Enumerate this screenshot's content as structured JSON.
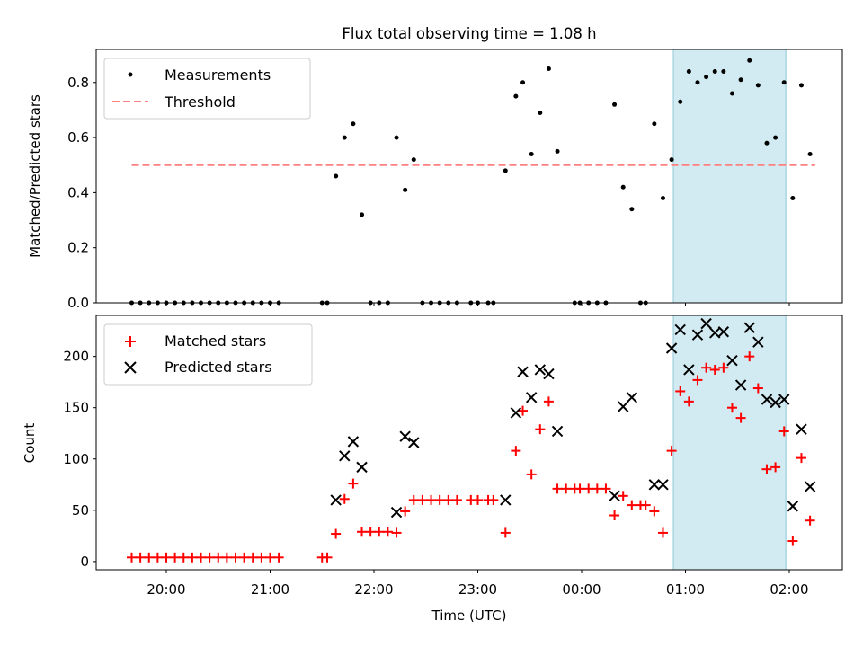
{
  "chart_data": {
    "title": "Flux total observing time = 1.08 h",
    "xlabel": "Time (UTC)",
    "x_ticks": [
      "20:00",
      "21:00",
      "22:00",
      "23:00",
      "00:00",
      "01:00",
      "02:00"
    ],
    "observing_window": {
      "start": "00:53",
      "end": "01:58",
      "color": "#add8e6"
    },
    "panels": [
      {
        "type": "scatter",
        "ylabel": "Matched/Predicted stars",
        "ylim": [
          0,
          0.92
        ],
        "y_ticks": [
          "0.0",
          "0.2",
          "0.4",
          "0.6",
          "0.8"
        ],
        "legend_position": "top-left",
        "threshold": {
          "name": "Threshold",
          "value": 0.5,
          "start": "19:40",
          "end": "02:15",
          "color": "#ff8080"
        },
        "series": [
          {
            "name": "Measurements",
            "color": "#000000",
            "points": [
              [
                "19:40",
                0
              ],
              [
                "19:45",
                0
              ],
              [
                "19:50",
                0
              ],
              [
                "19:55",
                0
              ],
              [
                "20:00",
                0
              ],
              [
                "20:05",
                0
              ],
              [
                "20:10",
                0
              ],
              [
                "20:15",
                0
              ],
              [
                "20:20",
                0
              ],
              [
                "20:25",
                0
              ],
              [
                "20:30",
                0
              ],
              [
                "20:35",
                0
              ],
              [
                "20:40",
                0
              ],
              [
                "20:45",
                0
              ],
              [
                "20:50",
                0
              ],
              [
                "20:55",
                0
              ],
              [
                "21:00",
                0
              ],
              [
                "21:05",
                0
              ],
              [
                "21:30",
                0
              ],
              [
                "21:33",
                0
              ],
              [
                "21:38",
                0.46
              ],
              [
                "21:43",
                0.6
              ],
              [
                "21:48",
                0.65
              ],
              [
                "21:53",
                0.32
              ],
              [
                "21:58",
                0
              ],
              [
                "22:03",
                0
              ],
              [
                "22:08",
                0
              ],
              [
                "22:13",
                0.6
              ],
              [
                "22:18",
                0.41
              ],
              [
                "22:23",
                0.52
              ],
              [
                "22:28",
                0
              ],
              [
                "22:33",
                0
              ],
              [
                "22:38",
                0
              ],
              [
                "22:43",
                0
              ],
              [
                "22:48",
                0
              ],
              [
                "22:56",
                0
              ],
              [
                "23:00",
                0
              ],
              [
                "23:06",
                0
              ],
              [
                "23:09",
                0
              ],
              [
                "23:16",
                0.48
              ],
              [
                "23:22",
                0.75
              ],
              [
                "23:26",
                0.8
              ],
              [
                "23:31",
                0.54
              ],
              [
                "23:36",
                0.69
              ],
              [
                "23:41",
                0.85
              ],
              [
                "23:46",
                0.55
              ],
              [
                "23:56",
                0
              ],
              [
                "23:59",
                0
              ],
              [
                "00:04",
                0
              ],
              [
                "00:09",
                0
              ],
              [
                "00:14",
                0
              ],
              [
                "00:19",
                0.72
              ],
              [
                "00:24",
                0.42
              ],
              [
                "00:29",
                0.34
              ],
              [
                "00:34",
                0
              ],
              [
                "00:37",
                0
              ],
              [
                "00:42",
                0.65
              ],
              [
                "00:47",
                0.38
              ],
              [
                "00:52",
                0.52
              ],
              [
                "00:57",
                0.73
              ],
              [
                "01:02",
                0.84
              ],
              [
                "01:07",
                0.8
              ],
              [
                "01:12",
                0.82
              ],
              [
                "01:17",
                0.84
              ],
              [
                "01:22",
                0.84
              ],
              [
                "01:27",
                0.76
              ],
              [
                "01:32",
                0.81
              ],
              [
                "01:37",
                0.88
              ],
              [
                "01:42",
                0.79
              ],
              [
                "01:47",
                0.58
              ],
              [
                "01:52",
                0.6
              ],
              [
                "01:57",
                0.8
              ],
              [
                "02:02",
                0.38
              ],
              [
                "02:07",
                0.79
              ],
              [
                "02:12",
                0.54
              ]
            ]
          }
        ]
      },
      {
        "type": "scatter",
        "ylabel": "Count",
        "ylim": [
          -8,
          240
        ],
        "y_ticks": [
          "0",
          "50",
          "100",
          "150",
          "200"
        ],
        "legend_position": "top-left",
        "series": [
          {
            "name": "Matched stars",
            "marker": "plus",
            "color": "#ff0000",
            "points": [
              [
                "19:40",
                4
              ],
              [
                "19:45",
                4
              ],
              [
                "19:50",
                4
              ],
              [
                "19:55",
                4
              ],
              [
                "20:00",
                4
              ],
              [
                "20:05",
                4
              ],
              [
                "20:10",
                4
              ],
              [
                "20:15",
                4
              ],
              [
                "20:20",
                4
              ],
              [
                "20:25",
                4
              ],
              [
                "20:30",
                4
              ],
              [
                "20:35",
                4
              ],
              [
                "20:40",
                4
              ],
              [
                "20:45",
                4
              ],
              [
                "20:50",
                4
              ],
              [
                "20:55",
                4
              ],
              [
                "21:00",
                4
              ],
              [
                "21:05",
                4
              ],
              [
                "21:30",
                4
              ],
              [
                "21:33",
                4
              ],
              [
                "21:38",
                27
              ],
              [
                "21:43",
                61
              ],
              [
                "21:48",
                76
              ],
              [
                "21:53",
                29
              ],
              [
                "21:58",
                29
              ],
              [
                "22:03",
                29
              ],
              [
                "22:08",
                29
              ],
              [
                "22:13",
                28
              ],
              [
                "22:18",
                49
              ],
              [
                "22:23",
                60
              ],
              [
                "22:28",
                60
              ],
              [
                "22:33",
                60
              ],
              [
                "22:38",
                60
              ],
              [
                "22:43",
                60
              ],
              [
                "22:48",
                60
              ],
              [
                "22:56",
                60
              ],
              [
                "23:00",
                60
              ],
              [
                "23:06",
                60
              ],
              [
                "23:09",
                60
              ],
              [
                "23:16",
                28
              ],
              [
                "23:22",
                108
              ],
              [
                "23:26",
                147
              ],
              [
                "23:31",
                85
              ],
              [
                "23:36",
                129
              ],
              [
                "23:41",
                156
              ],
              [
                "23:46",
                71
              ],
              [
                "23:51",
                71
              ],
              [
                "23:56",
                71
              ],
              [
                "23:59",
                71
              ],
              [
                "00:04",
                71
              ],
              [
                "00:09",
                71
              ],
              [
                "00:14",
                71
              ],
              [
                "00:19",
                45
              ],
              [
                "00:24",
                64
              ],
              [
                "00:29",
                55
              ],
              [
                "00:34",
                55
              ],
              [
                "00:37",
                55
              ],
              [
                "00:42",
                49
              ],
              [
                "00:47",
                28
              ],
              [
                "00:52",
                108
              ],
              [
                "00:57",
                166
              ],
              [
                "01:02",
                156
              ],
              [
                "01:07",
                177
              ],
              [
                "01:12",
                189
              ],
              [
                "01:17",
                187
              ],
              [
                "01:22",
                189
              ],
              [
                "01:27",
                150
              ],
              [
                "01:32",
                140
              ],
              [
                "01:37",
                200
              ],
              [
                "01:42",
                169
              ],
              [
                "01:47",
                90
              ],
              [
                "01:52",
                92
              ],
              [
                "01:57",
                127
              ],
              [
                "02:02",
                20
              ],
              [
                "02:07",
                101
              ],
              [
                "02:12",
                40
              ]
            ]
          },
          {
            "name": "Predicted stars",
            "marker": "x",
            "color": "#000000",
            "points": [
              [
                "21:38",
                60
              ],
              [
                "21:43",
                103
              ],
              [
                "21:48",
                117
              ],
              [
                "21:53",
                92
              ],
              [
                "22:13",
                48
              ],
              [
                "22:18",
                122
              ],
              [
                "22:23",
                116
              ],
              [
                "23:16",
                60
              ],
              [
                "23:22",
                145
              ],
              [
                "23:26",
                185
              ],
              [
                "23:31",
                160
              ],
              [
                "23:36",
                187
              ],
              [
                "23:41",
                183
              ],
              [
                "23:46",
                127
              ],
              [
                "00:19",
                64
              ],
              [
                "00:24",
                151
              ],
              [
                "00:29",
                160
              ],
              [
                "00:42",
                75
              ],
              [
                "00:47",
                75
              ],
              [
                "00:52",
                208
              ],
              [
                "00:57",
                226
              ],
              [
                "01:02",
                187
              ],
              [
                "01:07",
                221
              ],
              [
                "01:12",
                232
              ],
              [
                "01:17",
                223
              ],
              [
                "01:22",
                224
              ],
              [
                "01:27",
                196
              ],
              [
                "01:32",
                172
              ],
              [
                "01:37",
                228
              ],
              [
                "01:42",
                214
              ],
              [
                "01:47",
                158
              ],
              [
                "01:52",
                155
              ],
              [
                "01:57",
                158
              ],
              [
                "02:02",
                54
              ],
              [
                "02:07",
                129
              ],
              [
                "02:12",
                73
              ]
            ]
          }
        ]
      }
    ]
  }
}
